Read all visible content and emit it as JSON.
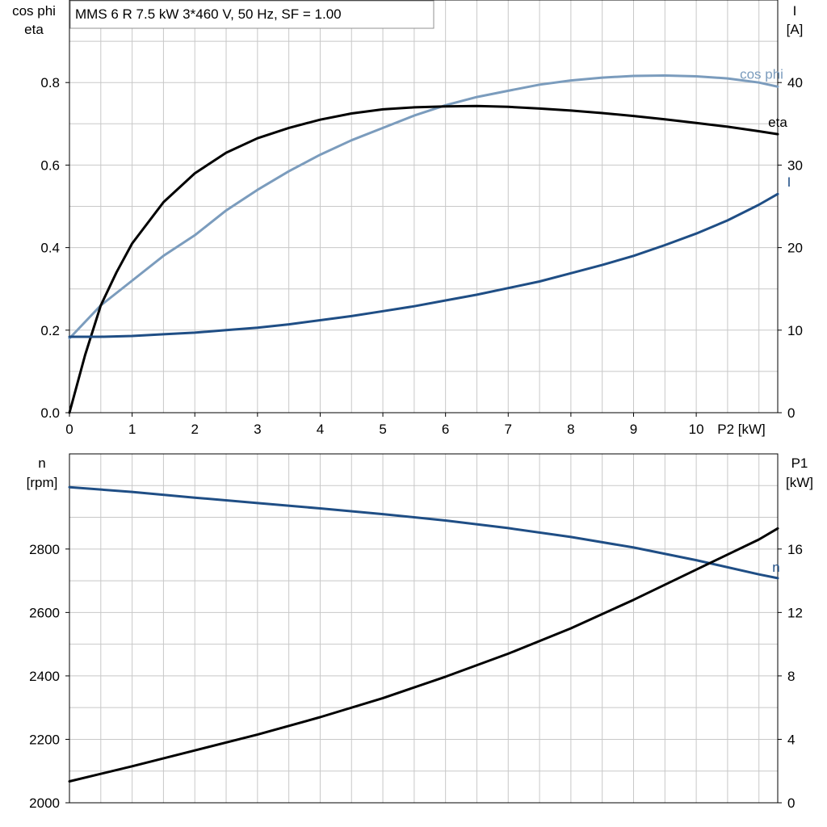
{
  "chart_data": [
    {
      "type": "line",
      "title": "MMS 6 R   7.5 kW   3*460 V, 50 Hz, SF = 1.00",
      "xlabel": "P2 [kW]",
      "xlim": [
        0,
        11.3
      ],
      "xticks": [
        0,
        1,
        2,
        3,
        4,
        5,
        6,
        7,
        8,
        9,
        10
      ],
      "ylabel_left": [
        "cos phi",
        "eta"
      ],
      "ylim_left": [
        0.0,
        1.0
      ],
      "yticks_left": [
        "0.0",
        "0.2",
        "0.4",
        "0.6",
        "0.8"
      ],
      "ylabel_right": [
        "I",
        "[A]"
      ],
      "ylim_right": [
        0,
        50
      ],
      "yticks_right": [
        "0",
        "10",
        "20",
        "30",
        "40"
      ],
      "grid": true,
      "series": [
        {
          "name": "cos phi",
          "axis": "left",
          "color": "#7b9cbd",
          "x": [
            0,
            0.5,
            1,
            1.5,
            2,
            2.5,
            3,
            3.5,
            4,
            4.5,
            5,
            5.5,
            6,
            6.5,
            7,
            7.5,
            8,
            8.5,
            9,
            9.5,
            10,
            10.5,
            11,
            11.3
          ],
          "y": [
            0.18,
            0.26,
            0.32,
            0.38,
            0.43,
            0.49,
            0.54,
            0.585,
            0.625,
            0.66,
            0.69,
            0.72,
            0.745,
            0.765,
            0.78,
            0.795,
            0.805,
            0.812,
            0.816,
            0.817,
            0.815,
            0.81,
            0.8,
            0.79
          ]
        },
        {
          "name": "eta",
          "axis": "left",
          "color": "#000000",
          "x": [
            0,
            0.25,
            0.5,
            0.75,
            1,
            1.5,
            2,
            2.5,
            3,
            3.5,
            4,
            4.5,
            5,
            5.5,
            6,
            6.5,
            7,
            7.5,
            8,
            8.5,
            9,
            9.5,
            10,
            10.5,
            11,
            11.3
          ],
          "y": [
            0.0,
            0.14,
            0.26,
            0.34,
            0.41,
            0.51,
            0.58,
            0.63,
            0.665,
            0.69,
            0.71,
            0.725,
            0.735,
            0.74,
            0.742,
            0.743,
            0.741,
            0.737,
            0.732,
            0.726,
            0.719,
            0.711,
            0.702,
            0.693,
            0.682,
            0.675
          ]
        },
        {
          "name": "I",
          "axis": "right",
          "color": "#1f4e85",
          "x": [
            0,
            0.5,
            1,
            1.5,
            2,
            2.5,
            3,
            3.5,
            4,
            4.5,
            5,
            5.5,
            6,
            6.5,
            7,
            7.5,
            8,
            8.5,
            9,
            9.5,
            10,
            10.5,
            11,
            11.3
          ],
          "y": [
            9.2,
            9.2,
            9.3,
            9.5,
            9.7,
            10.0,
            10.3,
            10.7,
            11.2,
            11.7,
            12.3,
            12.9,
            13.6,
            14.3,
            15.1,
            15.9,
            16.9,
            17.9,
            19.0,
            20.3,
            21.7,
            23.3,
            25.2,
            26.5
          ]
        }
      ]
    },
    {
      "type": "line",
      "title": "",
      "xlabel": "",
      "xlim": [
        0,
        11.3
      ],
      "ylabel_left": [
        "n",
        "[rpm]"
      ],
      "ylim_left": [
        2000,
        3100
      ],
      "yticks_left": [
        "2000",
        "2200",
        "2400",
        "2600",
        "2800"
      ],
      "ylabel_right": [
        "P1",
        "[kW]"
      ],
      "ylim_right": [
        0,
        22
      ],
      "yticks_right": [
        "0",
        "4",
        "8",
        "12",
        "16"
      ],
      "grid": true,
      "series": [
        {
          "name": "n",
          "axis": "left",
          "color": "#1f4e85",
          "x": [
            0,
            1,
            2,
            3,
            4,
            5,
            6,
            7,
            8,
            9,
            10,
            11,
            11.3
          ],
          "y": [
            2995,
            2980,
            2962,
            2945,
            2928,
            2910,
            2890,
            2866,
            2838,
            2805,
            2765,
            2720,
            2708
          ]
        },
        {
          "name": "",
          "axis": "right",
          "color": "#000000",
          "x": [
            0,
            1,
            2,
            3,
            4,
            5,
            6,
            7,
            8,
            9,
            10,
            11,
            11.3
          ],
          "y": [
            1.35,
            2.3,
            3.3,
            4.3,
            5.4,
            6.6,
            7.95,
            9.4,
            11.0,
            12.8,
            14.7,
            16.6,
            17.3
          ]
        }
      ]
    }
  ]
}
